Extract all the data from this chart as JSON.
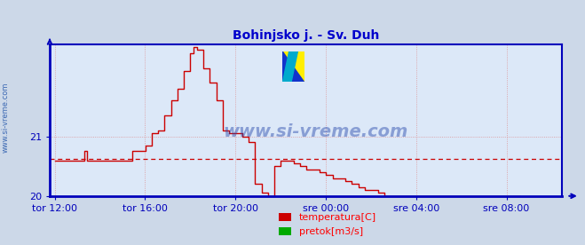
{
  "title": "Bohinjsko j. - Sv. Duh",
  "title_color": "#0000cc",
  "bg_color": "#ccd8e8",
  "plot_bg_color": "#dce8f8",
  "grid_color": "#dd8888",
  "axis_color": "#0000bb",
  "tick_color": "#0000bb",
  "xlabel_color": "#0000aa",
  "ylim": [
    20.0,
    22.55
  ],
  "yticks": [
    20,
    21
  ],
  "xtick_labels": [
    "tor 12:00",
    "tor 16:00",
    "tor 20:00",
    "sre 00:00",
    "sre 04:00",
    "sre 08:00"
  ],
  "xtick_positions": [
    0.0,
    0.1818,
    0.3636,
    0.5455,
    0.7273,
    0.9091
  ],
  "avg_line_y": 20.62,
  "avg_line_color": "#cc0000",
  "line_color": "#cc0000",
  "legend_items": [
    {
      "label": "temperatura[C]",
      "color": "#cc0000"
    },
    {
      "label": "pretok[m3/s]",
      "color": "#00aa00"
    }
  ],
  "watermark_text": "www.si-vreme.com",
  "watermark_color": "#2244aa",
  "side_text": "www.si-vreme.com",
  "side_color": "#2255aa",
  "temp_data_x": [
    0.0,
    0.013,
    0.026,
    0.039,
    0.052,
    0.06,
    0.065,
    0.078,
    0.091,
    0.104,
    0.117,
    0.13,
    0.143,
    0.15,
    0.156,
    0.169,
    0.182,
    0.195,
    0.208,
    0.221,
    0.234,
    0.247,
    0.26,
    0.273,
    0.28,
    0.286,
    0.299,
    0.312,
    0.325,
    0.338,
    0.351,
    0.364,
    0.377,
    0.39,
    0.403,
    0.416,
    0.429,
    0.442,
    0.455,
    0.468,
    0.481,
    0.494,
    0.507,
    0.52,
    0.533,
    0.546,
    0.559,
    0.572,
    0.585,
    0.598,
    0.611,
    0.624,
    0.637,
    0.65,
    0.663,
    0.676,
    0.689,
    0.702,
    0.715,
    0.728,
    0.741,
    0.754,
    0.767,
    0.78,
    0.793,
    0.806,
    0.819,
    0.832,
    0.845,
    0.858,
    0.871,
    0.884,
    0.897,
    0.91,
    0.923,
    0.936,
    0.949,
    0.962,
    0.975,
    0.988,
    1.0
  ],
  "temp_data_y": [
    20.6,
    20.6,
    20.6,
    20.6,
    20.6,
    20.75,
    20.6,
    20.6,
    20.6,
    20.6,
    20.6,
    20.6,
    20.6,
    20.6,
    20.75,
    20.75,
    20.85,
    21.05,
    21.1,
    21.35,
    21.6,
    21.8,
    22.1,
    22.4,
    22.5,
    22.45,
    22.15,
    21.9,
    21.6,
    21.1,
    21.05,
    21.05,
    21.0,
    20.9,
    20.2,
    20.05,
    20.0,
    20.5,
    20.6,
    20.6,
    20.55,
    20.5,
    20.45,
    20.45,
    20.4,
    20.35,
    20.3,
    20.3,
    20.25,
    20.2,
    20.15,
    20.1,
    20.1,
    20.05,
    20.0,
    20.0,
    20.0,
    20.0,
    20.0,
    20.0,
    20.0,
    20.0,
    20.0,
    20.0,
    20.0,
    20.0,
    20.0,
    20.0,
    20.0,
    20.0,
    20.0,
    20.0,
    20.0,
    20.0,
    20.0,
    19.95,
    19.95,
    19.9,
    19.9,
    19.85,
    19.85
  ]
}
